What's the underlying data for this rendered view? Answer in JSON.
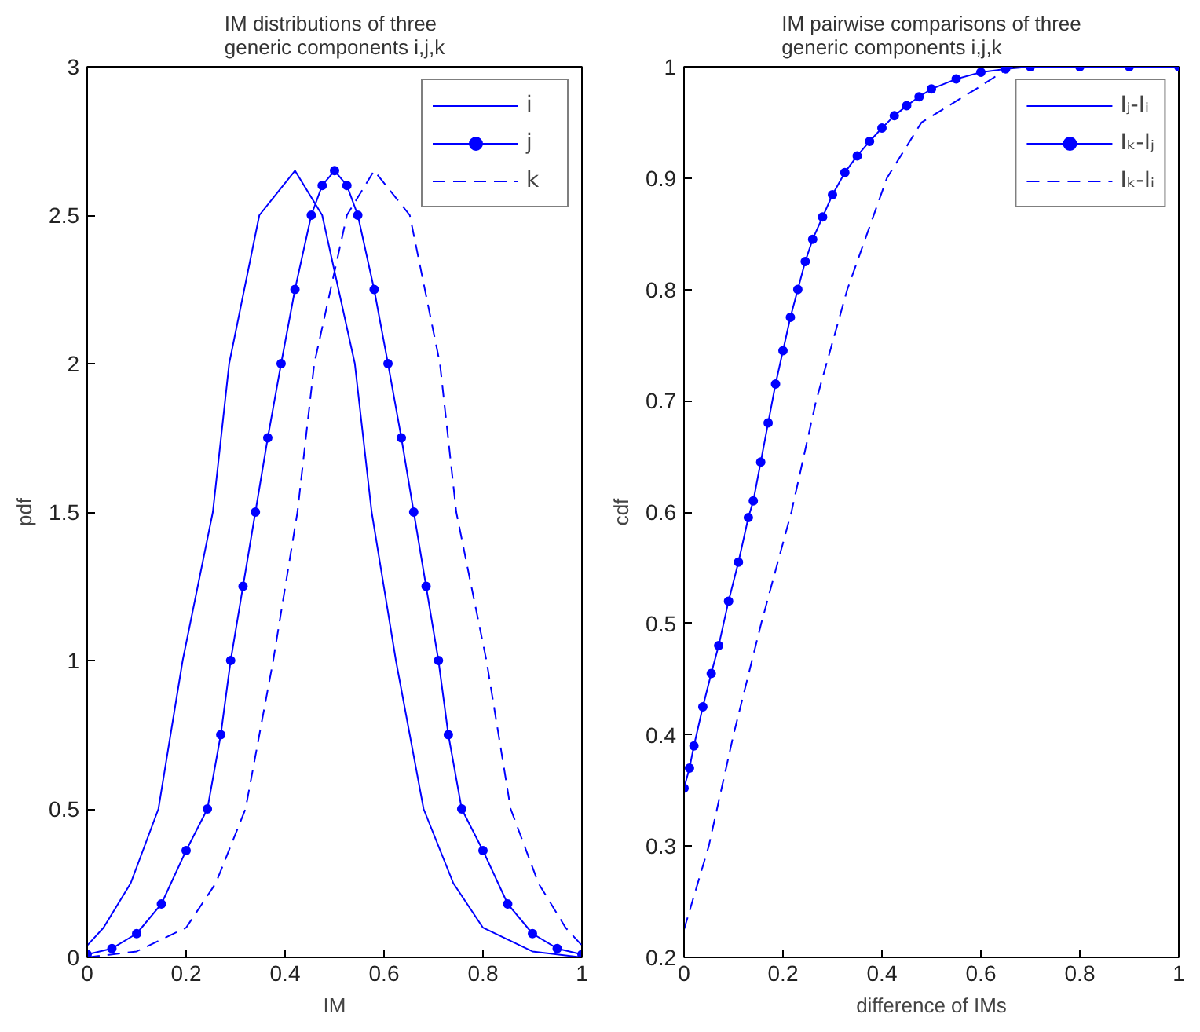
{
  "chart_data": [
    {
      "type": "line",
      "title": "IM distributions of three\ngeneric components i,j,k",
      "xlabel": "IM",
      "ylabel": "pdf",
      "xlim": [
        0,
        1
      ],
      "ylim": [
        0,
        3
      ],
      "xticks": [
        0,
        0.2,
        0.4,
        0.6,
        0.8,
        1
      ],
      "yticks": [
        0,
        0.5,
        1,
        1.5,
        2,
        2.5,
        3
      ],
      "grid": false,
      "legend": "top right",
      "series": [
        {
          "name": "i",
          "color": "#0000ff",
          "line_style": "solid",
          "marker": "none",
          "x": [
            0,
            0.033,
            0.088,
            0.144,
            0.193,
            0.254,
            0.287,
            0.348,
            0.42,
            0.475,
            0.541,
            0.575,
            0.624,
            0.68,
            0.74,
            0.8,
            0.9,
            1
          ],
          "values": [
            0.04,
            0.1,
            0.25,
            0.5,
            1.0,
            1.5,
            2.0,
            2.5,
            2.65,
            2.5,
            2.0,
            1.5,
            1.0,
            0.5,
            0.25,
            0.1,
            0.02,
            0
          ]
        },
        {
          "name": "j",
          "color": "#0000ff",
          "line_style": "solid",
          "marker": "circle",
          "x": [
            0,
            0.05,
            0.1,
            0.15,
            0.2,
            0.243,
            0.27,
            0.29,
            0.315,
            0.34,
            0.365,
            0.392,
            0.42,
            0.453,
            0.475,
            0.5,
            0.525,
            0.547,
            0.58,
            0.608,
            0.635,
            0.66,
            0.685,
            0.71,
            0.73,
            0.757,
            0.8,
            0.85,
            0.9,
            0.95,
            1
          ],
          "values": [
            0.01,
            0.03,
            0.08,
            0.18,
            0.36,
            0.5,
            0.75,
            1.0,
            1.25,
            1.5,
            1.75,
            2.0,
            2.25,
            2.5,
            2.6,
            2.65,
            2.6,
            2.5,
            2.25,
            2.0,
            1.75,
            1.5,
            1.25,
            1.0,
            0.75,
            0.5,
            0.36,
            0.18,
            0.08,
            0.03,
            0.01
          ]
        },
        {
          "name": "k",
          "color": "#0000ff",
          "line_style": "dashed",
          "marker": "none",
          "x": [
            0,
            0.1,
            0.2,
            0.26,
            0.32,
            0.376,
            0.425,
            0.459,
            0.525,
            0.58,
            0.652,
            0.713,
            0.746,
            0.807,
            0.856,
            0.912,
            0.967,
            1
          ],
          "values": [
            0,
            0.02,
            0.1,
            0.25,
            0.5,
            1.0,
            1.5,
            2.0,
            2.5,
            2.65,
            2.5,
            2.0,
            1.5,
            1.0,
            0.5,
            0.25,
            0.1,
            0.04
          ]
        }
      ]
    },
    {
      "type": "line",
      "title": "IM pairwise comparisons of three\ngeneric components i,j,k",
      "xlabel": "difference of IMs",
      "ylabel": "cdf",
      "xlim": [
        0,
        1
      ],
      "ylim": [
        0.2,
        1
      ],
      "xticks": [
        0,
        0.2,
        0.4,
        0.6,
        0.8,
        1
      ],
      "yticks": [
        0.2,
        0.3,
        0.4,
        0.5,
        0.6,
        0.7,
        0.8,
        0.9,
        1
      ],
      "grid": false,
      "legend": "top right",
      "series": [
        {
          "name": "Iⱼ-Iᵢ",
          "color": "#0000ff",
          "line_style": "solid",
          "marker": "none"
        },
        {
          "name": "Iₖ-Iⱼ",
          "color": "#0000ff",
          "line_style": "solid",
          "marker": "circle",
          "x": [
            0,
            0.011,
            0.02,
            0.038,
            0.055,
            0.07,
            0.09,
            0.11,
            0.13,
            0.14,
            0.155,
            0.17,
            0.185,
            0.2,
            0.215,
            0.23,
            0.245,
            0.26,
            0.28,
            0.3,
            0.325,
            0.35,
            0.375,
            0.4,
            0.425,
            0.45,
            0.475,
            0.5,
            0.55,
            0.6,
            0.65,
            0.7,
            0.8,
            0.9,
            1
          ],
          "values": [
            0.352,
            0.37,
            0.39,
            0.425,
            0.455,
            0.48,
            0.52,
            0.555,
            0.595,
            0.61,
            0.645,
            0.68,
            0.715,
            0.745,
            0.775,
            0.8,
            0.825,
            0.845,
            0.865,
            0.885,
            0.905,
            0.92,
            0.933,
            0.945,
            0.956,
            0.965,
            0.973,
            0.98,
            0.989,
            0.995,
            0.998,
            1,
            1,
            1,
            1
          ]
        },
        {
          "name": "Iₖ-Iᵢ",
          "color": "#0000ff",
          "line_style": "dashed",
          "marker": "none",
          "x": [
            0,
            0.05,
            0.1,
            0.156,
            0.217,
            0.267,
            0.33,
            0.41,
            0.48,
            0.59,
            0.66,
            0.8,
            1
          ],
          "values": [
            0.225,
            0.3,
            0.4,
            0.5,
            0.6,
            0.7,
            0.8,
            0.9,
            0.95,
            0.98,
            1,
            1,
            1
          ]
        }
      ]
    }
  ]
}
